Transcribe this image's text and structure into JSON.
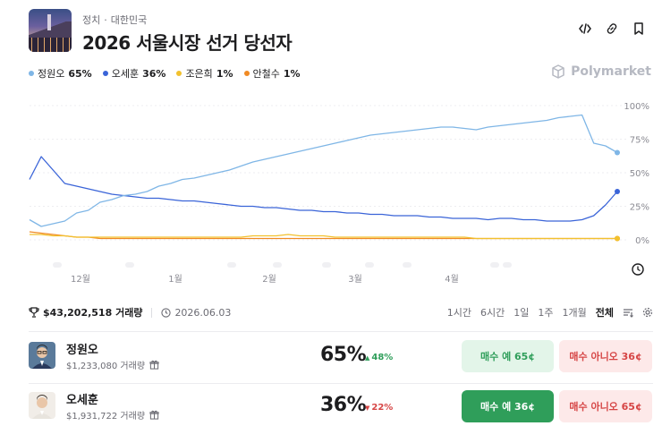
{
  "header": {
    "crumb_category": "정치",
    "crumb_dot": "·",
    "crumb_region": "대한민국",
    "title": "2026 서울시장 선거 당선자"
  },
  "icons": [
    "code-icon",
    "link-icon",
    "bookmark-icon",
    "clock-icon",
    "trophy-icon",
    "calendar-icon",
    "gift-icon",
    "filter-icon",
    "gear-icon"
  ],
  "brand": "Polymarket",
  "legend": [
    {
      "name": "정원오",
      "pct": "65%",
      "color": "#7fb6e6"
    },
    {
      "name": "오세훈",
      "pct": "36%",
      "color": "#3a64d8"
    },
    {
      "name": "조은희",
      "pct": "1%",
      "color": "#f2c12e"
    },
    {
      "name": "안철수",
      "pct": "1%",
      "color": "#f08a24"
    }
  ],
  "chart_data": {
    "type": "line",
    "x_labels": [
      "12월",
      "1월",
      "2월",
      "3월",
      "4월"
    ],
    "y_ticks": [
      "100%",
      "75%",
      "50%",
      "25%",
      "0%"
    ],
    "ylim": [
      0,
      100
    ],
    "grid": true,
    "series": [
      {
        "name": "정원오",
        "color": "#7fb6e6",
        "values": [
          15,
          10,
          12,
          14,
          20,
          22,
          28,
          30,
          33,
          34,
          36,
          40,
          42,
          45,
          46,
          48,
          50,
          52,
          55,
          58,
          60,
          62,
          64,
          66,
          68,
          70,
          72,
          74,
          76,
          78,
          79,
          80,
          81,
          82,
          83,
          84,
          84,
          83,
          82,
          84,
          85,
          86,
          87,
          88,
          89,
          91,
          92,
          93,
          72,
          70,
          65
        ]
      },
      {
        "name": "오세훈",
        "color": "#3a64d8",
        "values": [
          45,
          62,
          52,
          42,
          40,
          38,
          36,
          34,
          33,
          32,
          31,
          31,
          30,
          29,
          29,
          28,
          27,
          26,
          25,
          25,
          24,
          24,
          23,
          22,
          22,
          21,
          21,
          20,
          20,
          19,
          19,
          18,
          18,
          18,
          17,
          17,
          16,
          16,
          16,
          15,
          16,
          16,
          15,
          15,
          14,
          14,
          14,
          15,
          18,
          26,
          36
        ]
      },
      {
        "name": "조은희",
        "color": "#f2c12e",
        "values": [
          4,
          4,
          3,
          3,
          2,
          2,
          2,
          2,
          2,
          2,
          2,
          2,
          2,
          2,
          2,
          2,
          2,
          2,
          2,
          3,
          3,
          3,
          4,
          3,
          3,
          3,
          2,
          2,
          2,
          2,
          2,
          2,
          2,
          2,
          2,
          2,
          2,
          2,
          1,
          1,
          1,
          1,
          1,
          1,
          1,
          1,
          1,
          1,
          1,
          1,
          1
        ]
      },
      {
        "name": "안철수",
        "color": "#f08a24",
        "values": [
          6,
          5,
          4,
          3,
          2,
          2,
          1,
          1,
          1,
          1,
          1,
          1,
          1,
          1,
          1,
          1,
          1,
          1,
          1,
          1,
          1,
          1,
          1,
          1,
          1,
          1,
          1,
          1,
          1,
          1,
          1,
          1,
          1,
          1,
          1,
          1,
          1,
          1,
          1,
          1,
          1,
          1,
          1,
          1,
          1,
          1,
          1,
          1,
          1,
          1,
          1
        ]
      }
    ]
  },
  "stats": {
    "volume": "$43,202,518 거래량",
    "date": "2026.06.03"
  },
  "ranges": [
    "1시간",
    "6시간",
    "1일",
    "1주",
    "1개월",
    "전체"
  ],
  "active_range": "전체",
  "outcomes": [
    {
      "name": "정원오",
      "volume": "$1,233,080 거래량",
      "pct": "65%",
      "change": "48%",
      "dir": "up",
      "yes_label": "매수 예 65¢",
      "no_label": "매수 아니오 36¢"
    },
    {
      "name": "오세훈",
      "volume": "$1,931,722 거래량",
      "pct": "36%",
      "change": "22%",
      "dir": "down",
      "yes_label": "매수 예 36¢",
      "no_label": "매수 아니오 65¢"
    }
  ],
  "arrows": {
    "up": "▲",
    "down": "▼"
  }
}
